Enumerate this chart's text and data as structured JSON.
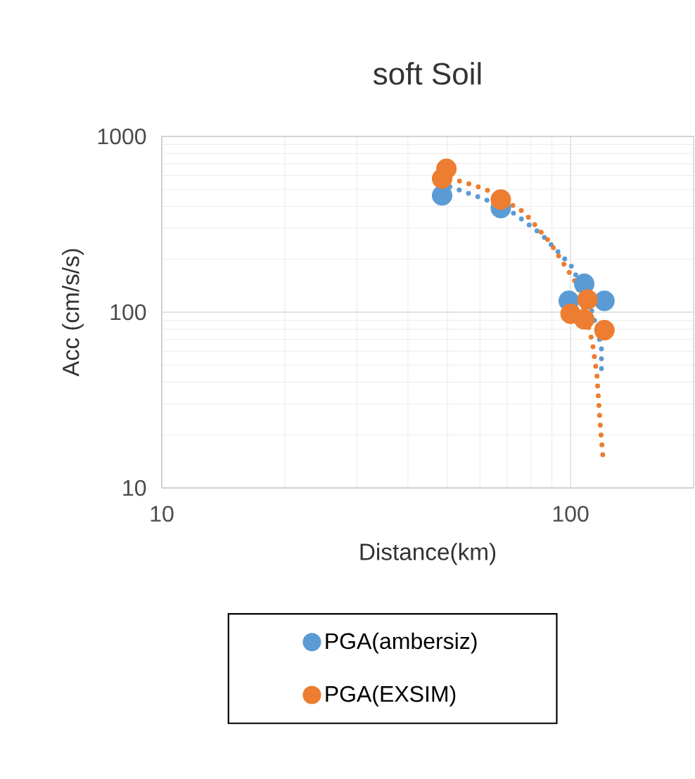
{
  "chart_data": {
    "type": "scatter",
    "title": "soft Soil",
    "xlabel": "Distance(km)",
    "ylabel": "Acc (cm/s/s)",
    "log": "xy",
    "xlim": [
      10,
      200
    ],
    "xticks": [
      10,
      100
    ],
    "ylim": [
      10,
      1000
    ],
    "yticks": [
      10,
      100,
      1000
    ],
    "grid": true,
    "legend": "bottom",
    "series": [
      {
        "name": "PGA(ambersiz)",
        "marker": "circle",
        "color": "#5b9bd5",
        "x": [
          48.5,
          67.5,
          108,
          99,
          121
        ],
        "values": [
          461,
          391,
          145,
          116,
          116
        ]
      },
      {
        "name": "PGA(EXSIM)",
        "marker": "circle",
        "color": "#ed7d31",
        "x": [
          49.7,
          48.5,
          67.5,
          110,
          100,
          108,
          121
        ],
        "values": [
          655,
          575,
          437,
          118,
          98,
          91,
          79
        ]
      },
      {
        "type": "line",
        "line_style": "dotted",
        "marker": "none",
        "color": "#5b9bd5",
        "x": [
          48,
          51,
          62,
          73,
          85,
          96,
          101,
          113,
          119,
          119
        ],
        "values": [
          530,
          515,
          437,
          363,
          276,
          205,
          180,
          100,
          64,
          47
        ]
      },
      {
        "type": "line",
        "line_style": "dotted",
        "marker": "none",
        "color": "#ed7d31",
        "x": [
          48,
          54,
          62,
          77,
          89,
          104,
          113,
          116,
          118,
          120
        ],
        "values": [
          590,
          555,
          500,
          370,
          250,
          142,
          68,
          44,
          24,
          15
        ]
      }
    ]
  }
}
